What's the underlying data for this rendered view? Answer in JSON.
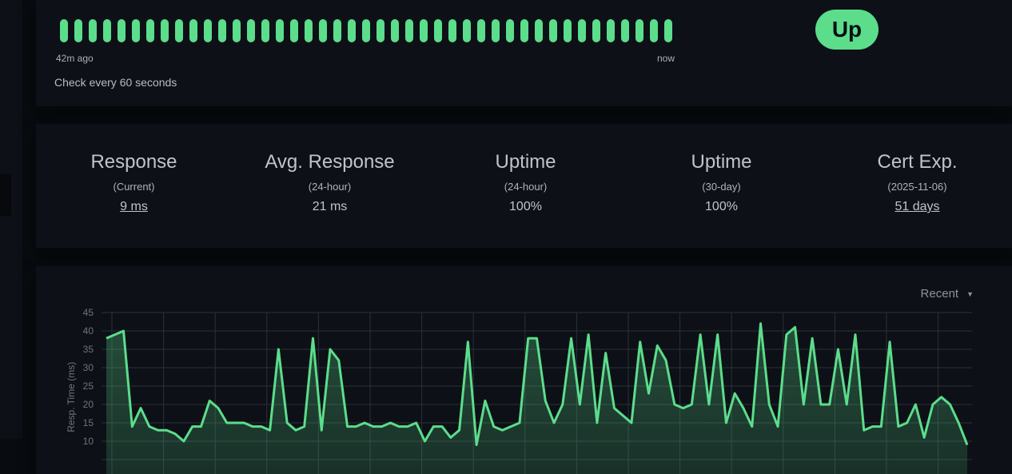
{
  "heartbeat": {
    "count": 43,
    "status_color": "#5cdd8b",
    "start_label": "42m ago",
    "end_label": "now",
    "interval_text": "Check every 60 seconds"
  },
  "status_badge": {
    "label": "Up",
    "color": "#5cdd8b"
  },
  "stats": [
    {
      "title": "Response",
      "sub": "(Current)",
      "value": "9 ms",
      "link": true
    },
    {
      "title": "Avg. Response",
      "sub": "(24-hour)",
      "value": "21 ms",
      "link": false
    },
    {
      "title": "Uptime",
      "sub": "(24-hour)",
      "value": "100%",
      "link": false
    },
    {
      "title": "Uptime",
      "sub": "(30-day)",
      "value": "100%",
      "link": false
    },
    {
      "title": "Cert Exp.",
      "sub": "(2025-11-06)",
      "value": "51 days",
      "link": true
    }
  ],
  "chart_controls": {
    "period": "Recent"
  },
  "chart_data": {
    "type": "area",
    "ylabel": "Resp. Time (ms)",
    "ylim": [
      0,
      45
    ],
    "yticks": [
      45,
      40,
      35,
      30,
      25,
      20,
      15,
      10
    ],
    "grid": true,
    "line_color": "#5cdd8b",
    "values": [
      38,
      39,
      40,
      14,
      19,
      14,
      13,
      13,
      12,
      10,
      14,
      14,
      21,
      19,
      15,
      15,
      15,
      14,
      14,
      13,
      35,
      15,
      13,
      14,
      38,
      13,
      35,
      32,
      14,
      14,
      15,
      14,
      14,
      15,
      14,
      14,
      15,
      10,
      14,
      14,
      11,
      13,
      37,
      9,
      21,
      14,
      13,
      14,
      15,
      38,
      38,
      21,
      15,
      20,
      38,
      20,
      39,
      15,
      34,
      19,
      17,
      15,
      37,
      23,
      36,
      32,
      20,
      19,
      20,
      39,
      20,
      39,
      15,
      23,
      19,
      14,
      42,
      20,
      14,
      39,
      41,
      20,
      38,
      20,
      20,
      35,
      20,
      39,
      13,
      14,
      14,
      37,
      14,
      15,
      20,
      11,
      20,
      22,
      20,
      15,
      9
    ]
  }
}
